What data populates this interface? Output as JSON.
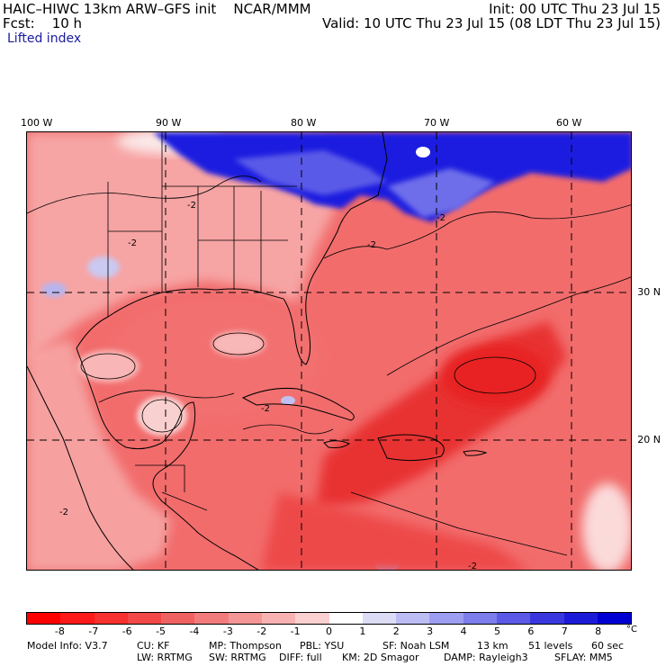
{
  "header": {
    "title": "HAIC–HIWC 13km ARW–GFS init    NCAR/MMM",
    "fcst": "Fcst:    10 h",
    "init": "Init: 00 UTC Thu 23 Jul 15",
    "valid": "Valid: 10 UTC Thu 23 Jul 15 (08 LDT Thu 23 Jul 15)",
    "field": "Lifted index"
  },
  "map": {
    "longitude_labels": [
      "100 W",
      "90 W",
      "80 W",
      "70 W",
      "60 W"
    ],
    "latitude_labels": [
      "30 N",
      "20 N"
    ],
    "contour_label": "-2",
    "colors": {
      "blue_region": "#1010d8",
      "ocean_red": "#f26060",
      "land_pink": "#f8a0a0",
      "deep_red": "#e82828",
      "outline": "#000000"
    }
  },
  "colorbar": {
    "unit": "°C",
    "tick_labels": [
      "-8",
      "-7",
      "-6",
      "-5",
      "-4",
      "-3",
      "-2",
      "-1",
      "0",
      "1",
      "2",
      "3",
      "4",
      "5",
      "6",
      "7",
      "8"
    ],
    "colors": [
      "#ff0000",
      "#ff1a1a",
      "#f73030",
      "#f24848",
      "#f06262",
      "#f27c7c",
      "#f59696",
      "#f8b2b2",
      "#fbd0d0",
      "#ffffff",
      "#dcdcf7",
      "#bdbdf5",
      "#9d9df1",
      "#7d7dec",
      "#5a5ae6",
      "#3838de",
      "#1c1cd8",
      "#0000d2"
    ]
  },
  "footer": {
    "model_info": "Model Info: V3.7",
    "cu": "CU: KF",
    "mp": "MP: Thompson",
    "pbl": "PBL: YSU",
    "sf": "SF: Noah LSM",
    "res": "13 km",
    "levels": "51 levels",
    "sec": "60 sec",
    "lw": "LW: RRTMG",
    "sw": "SW: RRTMG",
    "diff": "DIFF: full",
    "km": "KM: 2D Smagor",
    "damp": "DAMP: Rayleigh3",
    "sflay": "SFLAY: MM5"
  }
}
